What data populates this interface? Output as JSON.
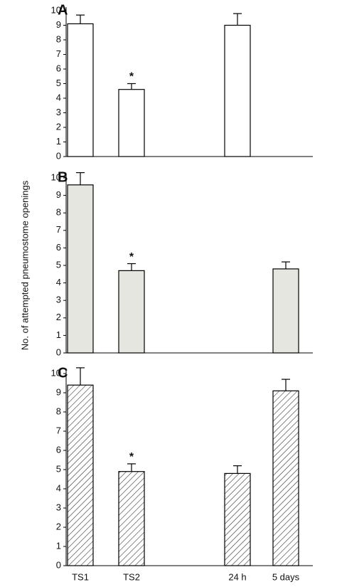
{
  "chart_data": [
    {
      "type": "bar",
      "title": "A",
      "values": [
        9.1,
        4.6,
        9.0,
        null
      ],
      "errors": [
        0.6,
        0.4,
        0.8,
        null
      ],
      "color": "#ffffff",
      "ylim": [
        0,
        10
      ],
      "yticks": [
        0,
        1,
        2,
        3,
        4,
        5,
        6,
        7,
        8,
        9,
        10
      ],
      "annotations": [
        {
          "text": "*",
          "category": 1
        }
      ]
    },
    {
      "type": "bar",
      "title": "B",
      "ylabel": "No. of attempted pneumostome openings",
      "values": [
        9.6,
        4.7,
        null,
        4.8
      ],
      "errors": [
        0.7,
        0.4,
        null,
        0.4
      ],
      "color": "#e6e6e0",
      "ylim": [
        0,
        10
      ],
      "yticks": [
        0,
        1,
        2,
        3,
        4,
        5,
        6,
        7,
        8,
        9,
        10
      ],
      "annotations": [
        {
          "text": "*",
          "category": 1
        }
      ]
    },
    {
      "type": "bar",
      "title": "C",
      "categories": [
        "TS1",
        "TS2",
        "24 h",
        "5 days"
      ],
      "values": [
        9.4,
        4.9,
        4.8,
        9.1
      ],
      "errors": [
        0.9,
        0.4,
        0.4,
        0.6
      ],
      "color": "#ffffff",
      "hatch": true,
      "ylim": [
        0,
        10
      ],
      "yticks": [
        0,
        1,
        2,
        3,
        4,
        5,
        6,
        7,
        8,
        9,
        10
      ],
      "annotations": [
        {
          "text": "*",
          "category": 1
        }
      ]
    }
  ]
}
